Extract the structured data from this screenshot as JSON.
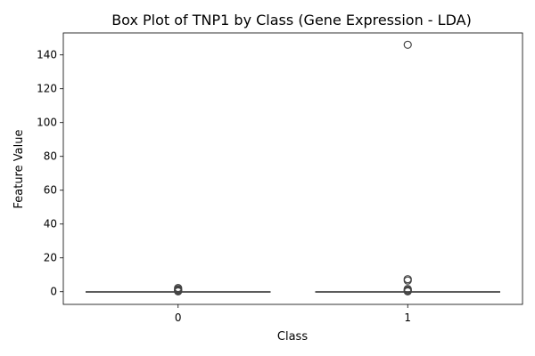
{
  "chart_data": {
    "type": "box",
    "title": "Box Plot of TNP1 by Class (Gene Expression - LDA)",
    "xlabel": "Class",
    "ylabel": "Feature Value",
    "categories": [
      "0",
      "1"
    ],
    "ylim": [
      -7.5,
      153
    ],
    "yticks": [
      0,
      20,
      40,
      60,
      80,
      100,
      120,
      140
    ],
    "grid": false,
    "boxes": [
      {
        "category": "0",
        "q1": 0,
        "median": 0,
        "q3": 0,
        "whisker_low": 0,
        "whisker_high": 0,
        "outliers": [
          0.2,
          0.6,
          1.0,
          1.5,
          2.2
        ]
      },
      {
        "category": "1",
        "q1": 0,
        "median": 0,
        "q3": 0,
        "whisker_low": 0,
        "whisker_high": 0,
        "outliers": [
          0.2,
          0.5,
          1.0,
          1.6,
          6.6,
          7.4,
          146
        ]
      }
    ],
    "colors": {
      "box": "#5c5c5c",
      "outlier": "#444444",
      "axis": "#000000"
    }
  }
}
